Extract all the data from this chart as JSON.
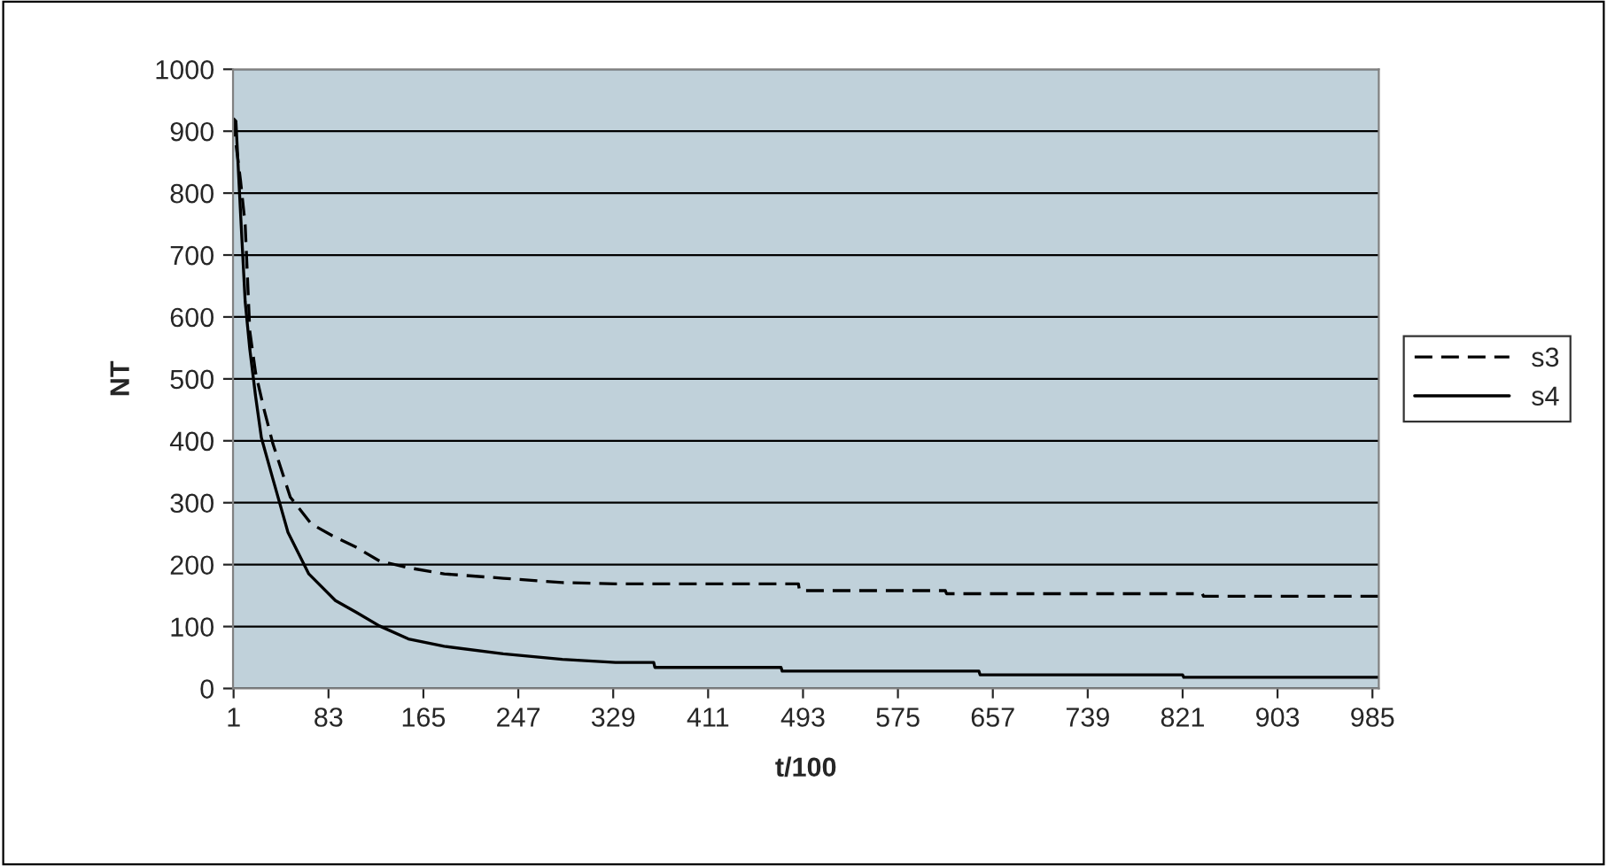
{
  "chart_data": {
    "type": "line",
    "xlabel": "t/100",
    "ylabel": "NT",
    "xlim": [
      0.5,
      990.5
    ],
    "xticks": [
      1,
      83,
      165,
      247,
      329,
      411,
      493,
      575,
      657,
      739,
      821,
      903,
      985
    ],
    "ylim": [
      0,
      1000
    ],
    "yticks": [
      0,
      100,
      200,
      300,
      400,
      500,
      600,
      700,
      800,
      900,
      1000
    ],
    "grid": "y",
    "legend": "right",
    "marker": "none",
    "series": [
      {
        "name": "s3",
        "color": "#000000",
        "line_style": "dashed",
        "x": [
          1,
          3,
          7,
          11,
          15,
          20,
          27,
          35,
          50,
          68,
          86,
          107,
          127,
          152,
          183,
          234,
          285,
          331,
          489,
          490,
          616,
          617,
          838,
          839,
          990
        ],
        "values": [
          920,
          880,
          820,
          749,
          577,
          510,
          453,
          395,
          309,
          266,
          247,
          228,
          206,
          195,
          185,
          178,
          171,
          169,
          169,
          158,
          158,
          153,
          153,
          149,
          149
        ]
      },
      {
        "name": "s4",
        "color": "#000000",
        "line_style": "solid",
        "x": [
          1,
          3,
          7,
          11,
          15,
          20,
          25,
          35,
          48,
          66,
          89,
          107,
          127,
          152,
          183,
          234,
          285,
          331,
          364,
          365,
          474,
          475,
          645,
          646,
          821,
          822,
          990
        ],
        "values": [
          920,
          916,
          768,
          625,
          548,
          472,
          405,
          338,
          252,
          185,
          142,
          123,
          101,
          80,
          68,
          56,
          47,
          42,
          42,
          34,
          34,
          28,
          28,
          22,
          22,
          18,
          18
        ]
      }
    ]
  }
}
